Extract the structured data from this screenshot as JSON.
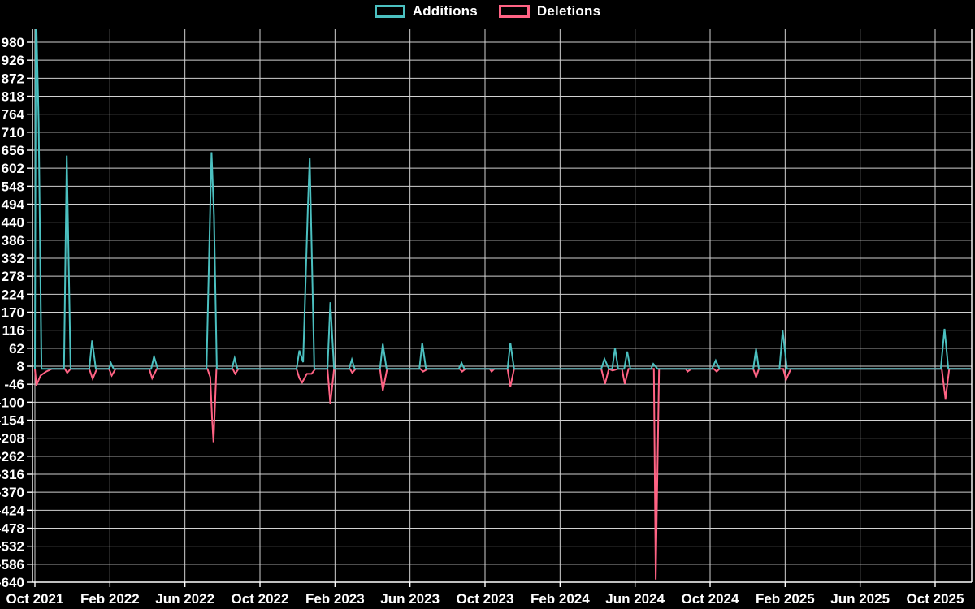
{
  "legend": {
    "items": [
      {
        "label": "Additions",
        "color": "#4bc0c0"
      },
      {
        "label": "Deletions",
        "color": "#ff6384"
      }
    ]
  },
  "chart_data": {
    "type": "line",
    "title": "",
    "xlabel": "",
    "ylabel": "",
    "background_color": "#000000",
    "grid": true,
    "grid_color": "#ffffff",
    "text_color": "#ffffff",
    "legend_position": "top",
    "x_axis": {
      "unit": "months since Oct 2021",
      "range_months": [
        0,
        49.9
      ],
      "tick_month_offsets": [
        0,
        4,
        8,
        12,
        16,
        20,
        24,
        28,
        32,
        36,
        40,
        44,
        48
      ],
      "tick_labels": [
        "Oct 2021",
        "Feb 2022",
        "Jun 2022",
        "Oct 2022",
        "Feb 2023",
        "Jun 2023",
        "Oct 2023",
        "Feb 2024",
        "Jun 2024",
        "Oct 2024",
        "Feb 2025",
        "Jun 2025",
        "Oct 2025"
      ]
    },
    "y_axis": {
      "range": [
        -640,
        1019
      ],
      "tick_values": [
        980,
        926,
        872,
        818,
        764,
        710,
        656,
        602,
        548,
        494,
        440,
        386,
        332,
        278,
        224,
        170,
        116,
        62,
        8,
        -46,
        -100,
        -154,
        -208,
        -262,
        -316,
        -370,
        -424,
        -478,
        -532,
        -586,
        -640
      ]
    },
    "series": [
      {
        "name": "Additions",
        "color": "#4bc0c0",
        "points": [
          [
            0,
            0
          ],
          [
            0.05,
            1100
          ],
          [
            0.2,
            740
          ],
          [
            0.35,
            0
          ],
          [
            1.55,
            0
          ],
          [
            1.7,
            640
          ],
          [
            1.9,
            0
          ],
          [
            2.9,
            0
          ],
          [
            3.05,
            85
          ],
          [
            3.25,
            0
          ],
          [
            3.95,
            0
          ],
          [
            4.05,
            18
          ],
          [
            4.2,
            0
          ],
          [
            6.2,
            0
          ],
          [
            6.35,
            37
          ],
          [
            6.55,
            0
          ],
          [
            9.15,
            0
          ],
          [
            9.3,
            370
          ],
          [
            9.42,
            650
          ],
          [
            9.55,
            460
          ],
          [
            9.7,
            0
          ],
          [
            10.5,
            0
          ],
          [
            10.65,
            32
          ],
          [
            10.8,
            0
          ],
          [
            13.95,
            0
          ],
          [
            14.1,
            55
          ],
          [
            14.3,
            20
          ],
          [
            14.55,
            480
          ],
          [
            14.65,
            633
          ],
          [
            14.9,
            0
          ],
          [
            15.6,
            0
          ],
          [
            15.75,
            200
          ],
          [
            15.95,
            0
          ],
          [
            16.75,
            0
          ],
          [
            16.9,
            28
          ],
          [
            17.05,
            0
          ],
          [
            18.4,
            0
          ],
          [
            18.55,
            75
          ],
          [
            18.75,
            0
          ],
          [
            20.5,
            0
          ],
          [
            20.65,
            78
          ],
          [
            20.85,
            0
          ],
          [
            22.6,
            0
          ],
          [
            22.75,
            18
          ],
          [
            22.9,
            0
          ],
          [
            25.2,
            0
          ],
          [
            25.35,
            78
          ],
          [
            25.55,
            0
          ],
          [
            30.2,
            0
          ],
          [
            30.37,
            30
          ],
          [
            30.6,
            0
          ],
          [
            30.78,
            0
          ],
          [
            30.93,
            62
          ],
          [
            31.1,
            0
          ],
          [
            31.42,
            0
          ],
          [
            31.58,
            52
          ],
          [
            31.75,
            0
          ],
          [
            32.85,
            0
          ],
          [
            32.97,
            15
          ],
          [
            33.2,
            0
          ],
          [
            36.1,
            0
          ],
          [
            36.3,
            25
          ],
          [
            36.5,
            0
          ],
          [
            38.3,
            0
          ],
          [
            38.45,
            60
          ],
          [
            38.6,
            0
          ],
          [
            39.7,
            0
          ],
          [
            39.87,
            115
          ],
          [
            40.1,
            0
          ],
          [
            48.3,
            0
          ],
          [
            48.5,
            120
          ],
          [
            48.7,
            0
          ],
          [
            49.9,
            0
          ]
        ]
      },
      {
        "name": "Deletions",
        "color": "#ff6384",
        "points": [
          [
            0,
            0
          ],
          [
            0.08,
            -50
          ],
          [
            0.3,
            -20
          ],
          [
            0.6,
            -8
          ],
          [
            0.9,
            0
          ],
          [
            1.6,
            0
          ],
          [
            1.72,
            -12
          ],
          [
            1.9,
            0
          ],
          [
            2.9,
            0
          ],
          [
            3.08,
            -30
          ],
          [
            3.3,
            0
          ],
          [
            3.95,
            0
          ],
          [
            4.1,
            -20
          ],
          [
            4.3,
            0
          ],
          [
            6.1,
            0
          ],
          [
            6.25,
            -28
          ],
          [
            6.5,
            0
          ],
          [
            9.2,
            0
          ],
          [
            9.35,
            -25
          ],
          [
            9.45,
            -150
          ],
          [
            9.52,
            -220
          ],
          [
            9.68,
            0
          ],
          [
            10.55,
            0
          ],
          [
            10.68,
            -15
          ],
          [
            10.85,
            0
          ],
          [
            13.95,
            0
          ],
          [
            14.1,
            -28
          ],
          [
            14.25,
            -41
          ],
          [
            14.5,
            -15
          ],
          [
            14.75,
            -15
          ],
          [
            14.95,
            0
          ],
          [
            15.6,
            0
          ],
          [
            15.75,
            -105
          ],
          [
            15.95,
            0
          ],
          [
            16.8,
            0
          ],
          [
            16.92,
            -12
          ],
          [
            17.1,
            0
          ],
          [
            18.4,
            0
          ],
          [
            18.55,
            -65
          ],
          [
            18.78,
            0
          ],
          [
            20.55,
            0
          ],
          [
            20.7,
            -8
          ],
          [
            20.95,
            0
          ],
          [
            22.65,
            0
          ],
          [
            22.78,
            -8
          ],
          [
            22.95,
            0
          ],
          [
            24.25,
            0
          ],
          [
            24.35,
            -8
          ],
          [
            24.5,
            0
          ],
          [
            25.2,
            0
          ],
          [
            25.35,
            -53
          ],
          [
            25.55,
            0
          ],
          [
            30.2,
            0
          ],
          [
            30.4,
            -45
          ],
          [
            30.6,
            0
          ],
          [
            30.8,
            -5
          ],
          [
            31.1,
            0
          ],
          [
            31.3,
            0
          ],
          [
            31.45,
            -45
          ],
          [
            31.65,
            0
          ],
          [
            33.0,
            0
          ],
          [
            33.1,
            -632
          ],
          [
            33.28,
            0
          ],
          [
            34.7,
            0
          ],
          [
            34.8,
            -8
          ],
          [
            35.0,
            0
          ],
          [
            36.2,
            0
          ],
          [
            36.35,
            -8
          ],
          [
            36.5,
            0
          ],
          [
            38.3,
            0
          ],
          [
            38.45,
            -25
          ],
          [
            38.6,
            0
          ],
          [
            39.9,
            0
          ],
          [
            40.05,
            -33
          ],
          [
            40.3,
            0
          ],
          [
            48.35,
            0
          ],
          [
            48.55,
            -90
          ],
          [
            48.75,
            0
          ],
          [
            49.9,
            0
          ]
        ]
      }
    ]
  }
}
